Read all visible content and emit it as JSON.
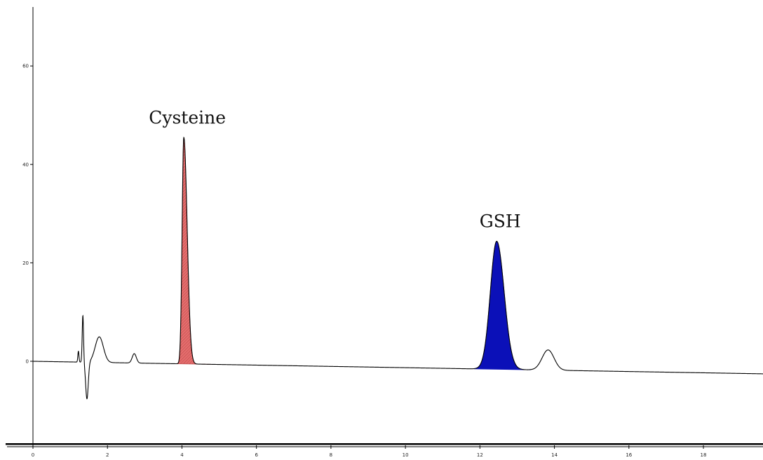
{
  "chart_data": {
    "type": "line",
    "title": "",
    "xlabel": "",
    "ylabel": "",
    "xlim": [
      0,
      19.6
    ],
    "ylim": [
      -17,
      71
    ],
    "x_ticks": [
      0,
      2,
      4,
      6,
      8,
      10,
      12,
      14,
      16,
      18
    ],
    "x_tick_labels": [
      "0",
      "2",
      "4",
      "6",
      "8",
      "10",
      "12",
      "14",
      "16",
      "18"
    ],
    "y_ticks": [
      0,
      20,
      40,
      60
    ],
    "y_tick_labels": [
      "0",
      "20",
      "40",
      "60"
    ],
    "grid": false,
    "baseline": {
      "start": 0,
      "end_slope_per_min": -0.13
    },
    "features": [
      {
        "t": 1.22,
        "h": 2.2,
        "w": 0.015
      },
      {
        "t": 1.34,
        "h": 9.5,
        "w": 0.018
      },
      {
        "t": 1.45,
        "h": -7.5,
        "w": 0.035
      },
      {
        "t": 1.78,
        "h": 5.2,
        "w": 0.11
      },
      {
        "t": 2.72,
        "h": 1.9,
        "w": 0.055
      },
      {
        "t": 13.83,
        "h": 4.1,
        "w": 0.16
      }
    ],
    "peaks": [
      {
        "name": "Cysteine",
        "label": "Cysteine",
        "t": 4.05,
        "height": 46,
        "start": 3.88,
        "end": 4.95,
        "fill": "#e46d6d",
        "pattern": "hatched",
        "w_left": 0.045,
        "w_right": 0.09
      },
      {
        "name": "GSH",
        "label": "GSH",
        "t": 12.45,
        "height": 26,
        "start": 11.85,
        "end": 13.35,
        "fill": "#0b10b8",
        "pattern": "solid",
        "w_left": 0.17,
        "w_right": 0.2
      }
    ],
    "colors": {
      "trace": "#000000",
      "axis": "#000000"
    }
  }
}
